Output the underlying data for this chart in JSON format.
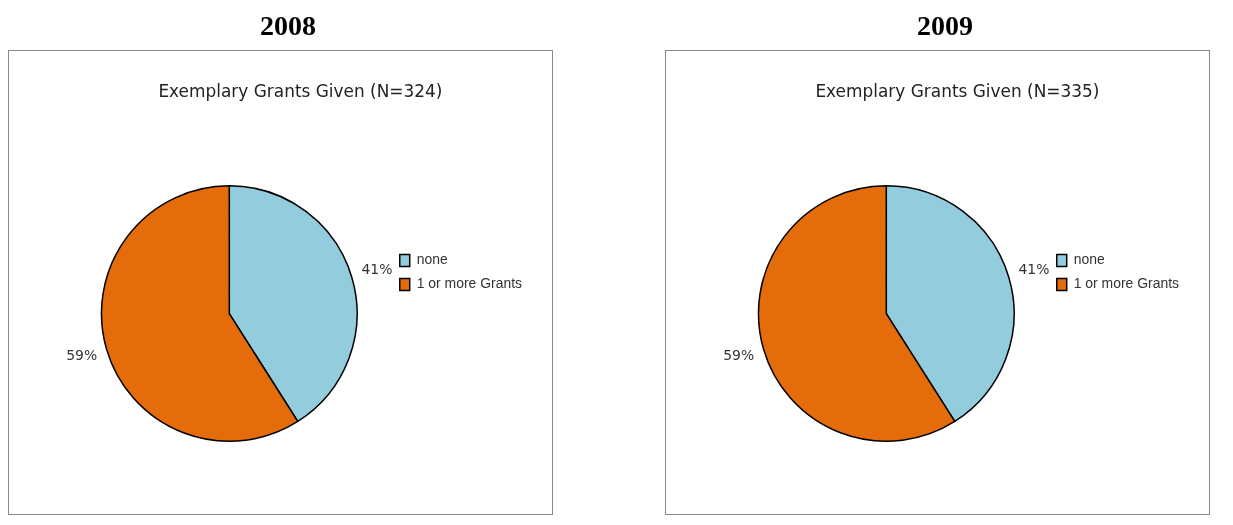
{
  "chart_data": [
    {
      "type": "pie",
      "title": "2008",
      "subtitle": "Exemplary Grants Given (N=324)",
      "categories": [
        "none",
        "1 or more Grants"
      ],
      "values": [
        41,
        59
      ],
      "colors": [
        "#93cddd",
        "#e46c0a"
      ],
      "value_labels": [
        "41%",
        "59%"
      ],
      "legend": "right"
    },
    {
      "type": "pie",
      "title": "2009",
      "subtitle": "Exemplary Grants Given (N=335)",
      "categories": [
        "none",
        "1 or more Grants"
      ],
      "values": [
        41,
        59
      ],
      "colors": [
        "#93cddd",
        "#e46c0a"
      ],
      "value_labels": [
        "41%",
        "59%"
      ],
      "legend": "right"
    }
  ]
}
